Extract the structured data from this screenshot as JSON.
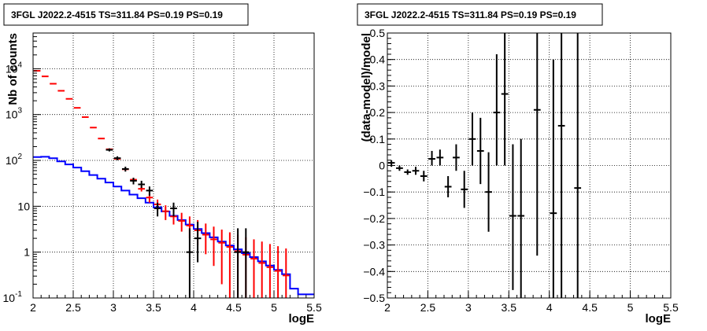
{
  "chart_data": [
    {
      "type": "line",
      "title": "3FGL J2022.2-4515 TS=311.84 PS=0.19 PS=0.19",
      "xlabel": "logE",
      "ylabel": "Nb of counts",
      "xlim": [
        2,
        5.5
      ],
      "ylim": [
        0.1,
        60000
      ],
      "ylog": true,
      "grid": true,
      "xticks": [
        "2",
        "2.5",
        "3",
        "3.5",
        "4",
        "4.5",
        "5",
        "5.5"
      ],
      "yticks": [
        {
          "value": 0.1,
          "base": "10",
          "exp": "-1"
        },
        {
          "value": 1,
          "base": "1",
          "exp": ""
        },
        {
          "value": 10,
          "base": "10",
          "exp": ""
        },
        {
          "value": 100,
          "base": "10",
          "exp": "2"
        },
        {
          "value": 1000,
          "base": "10",
          "exp": "3"
        },
        {
          "value": 10000,
          "base": "10",
          "exp": "4"
        }
      ],
      "bin_edges": [
        2.0,
        2.1,
        2.2,
        2.3,
        2.4,
        2.5,
        2.6,
        2.7,
        2.8,
        2.9,
        3.0,
        3.1,
        3.2,
        3.3,
        3.4,
        3.5,
        3.6,
        3.7,
        3.8,
        3.9,
        4.0,
        4.1,
        4.2,
        4.3,
        4.4,
        4.5,
        4.6,
        4.7,
        4.8,
        4.9,
        5.0,
        5.1,
        5.2,
        5.3,
        5.4,
        5.5
      ],
      "series": [
        {
          "color": "#0000ff",
          "style": "step",
          "values": [
            118,
            120,
            112,
            95,
            82,
            70,
            58,
            48,
            40,
            33,
            27,
            22,
            18,
            15,
            12,
            9.5,
            7.7,
            6.2,
            5.0,
            4.0,
            3.2,
            2.6,
            2.1,
            1.7,
            1.4,
            1.15,
            0.95,
            0.78,
            0.63,
            0.51,
            0.41,
            0.33,
            0.16,
            0.12,
            0.12
          ]
        },
        {
          "color": "#ff0000",
          "style": "errorbar",
          "points": [
            {
              "x": 2.05,
              "y": 9000,
              "lo": 9000,
              "hi": 9000
            },
            {
              "x": 2.15,
              "y": 6800,
              "lo": 6800,
              "hi": 6800
            },
            {
              "x": 2.25,
              "y": 4700,
              "lo": 4700,
              "hi": 4700
            },
            {
              "x": 2.35,
              "y": 3300,
              "lo": 3300,
              "hi": 3300
            },
            {
              "x": 2.45,
              "y": 2200,
              "lo": 2200,
              "hi": 2200
            },
            {
              "x": 2.55,
              "y": 1400,
              "lo": 1400,
              "hi": 1400
            },
            {
              "x": 2.65,
              "y": 880,
              "lo": 880,
              "hi": 880
            },
            {
              "x": 2.75,
              "y": 520,
              "lo": 520,
              "hi": 520
            },
            {
              "x": 2.85,
              "y": 300,
              "lo": 300,
              "hi": 300
            },
            {
              "x": 2.95,
              "y": 175,
              "lo": 172,
              "hi": 178
            },
            {
              "x": 3.05,
              "y": 108,
              "lo": 105,
              "hi": 111
            },
            {
              "x": 3.15,
              "y": 64,
              "lo": 61,
              "hi": 67
            },
            {
              "x": 3.25,
              "y": 38,
              "lo": 35,
              "hi": 41
            },
            {
              "x": 3.35,
              "y": 24,
              "lo": 21,
              "hi": 27
            },
            {
              "x": 3.45,
              "y": 15.5,
              "lo": 12,
              "hi": 19
            },
            {
              "x": 3.55,
              "y": 11,
              "lo": 8,
              "hi": 14
            },
            {
              "x": 3.65,
              "y": 7.8,
              "lo": 5,
              "hi": 10.5
            },
            {
              "x": 3.75,
              "y": 6.0,
              "lo": 4,
              "hi": 8.5
            },
            {
              "x": 3.85,
              "y": 4.8,
              "lo": 2.8,
              "hi": 7.2
            },
            {
              "x": 3.95,
              "y": 3.8,
              "lo": 2,
              "hi": 6
            },
            {
              "x": 4.05,
              "y": 3.0,
              "lo": 1.4,
              "hi": 5
            },
            {
              "x": 4.15,
              "y": 2.4,
              "lo": 0.9,
              "hi": 4.2
            },
            {
              "x": 4.25,
              "y": 1.9,
              "lo": 0.5,
              "hi": 3.6
            },
            {
              "x": 4.35,
              "y": 1.6,
              "lo": 0.2,
              "hi": 3.1
            },
            {
              "x": 4.45,
              "y": 1.3,
              "lo": 0.1,
              "hi": 2.7
            },
            {
              "x": 4.55,
              "y": 1.05,
              "lo": 0.1,
              "hi": 2.4
            },
            {
              "x": 4.65,
              "y": 0.88,
              "lo": 0.1,
              "hi": 2.1
            },
            {
              "x": 4.75,
              "y": 0.72,
              "lo": 0.1,
              "hi": 1.9
            },
            {
              "x": 4.85,
              "y": 0.58,
              "lo": 0.1,
              "hi": 1.7
            },
            {
              "x": 4.95,
              "y": 0.47,
              "lo": 0.1,
              "hi": 1.5
            },
            {
              "x": 5.05,
              "y": 0.39,
              "lo": 0.1,
              "hi": 1.35
            },
            {
              "x": 5.15,
              "y": 0.31,
              "lo": 0.1,
              "hi": 1.2
            }
          ]
        },
        {
          "color": "#000000",
          "style": "errorbar",
          "points": [
            {
              "x": 2.95,
              "y": 170,
              "lo": 157,
              "hi": 183
            },
            {
              "x": 3.05,
              "y": 112,
              "lo": 101,
              "hi": 123
            },
            {
              "x": 3.15,
              "y": 65,
              "lo": 57,
              "hi": 73
            },
            {
              "x": 3.25,
              "y": 36,
              "lo": 30,
              "hi": 42
            },
            {
              "x": 3.35,
              "y": 30,
              "lo": 25,
              "hi": 36
            },
            {
              "x": 3.45,
              "y": 22,
              "lo": 17,
              "hi": 27
            },
            {
              "x": 3.55,
              "y": 9,
              "lo": 6,
              "hi": 12
            },
            {
              "x": 3.75,
              "y": 9,
              "lo": 6,
              "hi": 12
            },
            {
              "x": 3.95,
              "y": 1,
              "lo": 0.1,
              "hi": 3.3
            },
            {
              "x": 4.05,
              "y": 2,
              "lo": 0.6,
              "hi": 4.6
            },
            {
              "x": 4.55,
              "y": 1,
              "lo": 0.1,
              "hi": 3.3
            },
            {
              "x": 4.65,
              "y": 1,
              "lo": 0.1,
              "hi": 3.3
            }
          ]
        }
      ]
    },
    {
      "type": "scatter",
      "title": "3FGL J2022.2-4515 TS=311.84 PS=0.19 PS=0.19",
      "xlabel": "logE",
      "ylabel": "(data-model)/model",
      "xlim": [
        2,
        5.5
      ],
      "ylim": [
        -0.5,
        0.5
      ],
      "grid": true,
      "xticks": [
        "2",
        "2.5",
        "3",
        "3.5",
        "4",
        "4.5",
        "5",
        "5.5"
      ],
      "yticks": [
        "−0.5",
        "−0.4",
        "−0.3",
        "−0.2",
        "−0.1",
        "0",
        "0.1",
        "0.2",
        "0.3",
        "0.4",
        "0.5"
      ],
      "series": [
        {
          "color": "#000000",
          "style": "errorbar",
          "points": [
            {
              "x": 2.05,
              "y": 0.01,
              "lo": -0.005,
              "hi": 0.02
            },
            {
              "x": 2.15,
              "y": -0.01,
              "lo": -0.02,
              "hi": 0.0
            },
            {
              "x": 2.25,
              "y": -0.025,
              "lo": -0.035,
              "hi": -0.015
            },
            {
              "x": 2.35,
              "y": -0.02,
              "lo": -0.035,
              "hi": -0.005
            },
            {
              "x": 2.45,
              "y": -0.04,
              "lo": -0.06,
              "hi": -0.02
            },
            {
              "x": 2.55,
              "y": 0.025,
              "lo": 0.0,
              "hi": 0.055
            },
            {
              "x": 2.65,
              "y": 0.03,
              "lo": 0.0,
              "hi": 0.06
            },
            {
              "x": 2.75,
              "y": -0.08,
              "lo": -0.12,
              "hi": -0.04
            },
            {
              "x": 2.85,
              "y": 0.03,
              "lo": -0.02,
              "hi": 0.08
            },
            {
              "x": 2.95,
              "y": -0.09,
              "lo": -0.16,
              "hi": -0.02
            },
            {
              "x": 3.05,
              "y": 0.1,
              "lo": 0.0,
              "hi": 0.2
            },
            {
              "x": 3.15,
              "y": 0.055,
              "lo": -0.07,
              "hi": 0.18
            },
            {
              "x": 3.25,
              "y": -0.1,
              "lo": -0.25,
              "hi": 0.05
            },
            {
              "x": 3.35,
              "y": 0.2,
              "lo": 0.0,
              "hi": 0.42
            },
            {
              "x": 3.45,
              "y": 0.27,
              "lo": 0.0,
              "hi": 0.55
            },
            {
              "x": 3.55,
              "y": -0.19,
              "lo": -0.47,
              "hi": 0.08
            },
            {
              "x": 3.65,
              "y": -0.19,
              "lo": -0.5,
              "hi": 0.1
            },
            {
              "x": 3.85,
              "y": 0.21,
              "lo": -0.34,
              "hi": 0.55
            },
            {
              "x": 4.05,
              "y": -0.18,
              "lo": -0.5,
              "hi": 0.4
            },
            {
              "x": 4.15,
              "y": 0.15,
              "lo": -0.5,
              "hi": 0.55
            },
            {
              "x": 4.35,
              "y": -0.085,
              "lo": -0.5,
              "hi": 0.55
            }
          ]
        }
      ]
    }
  ]
}
